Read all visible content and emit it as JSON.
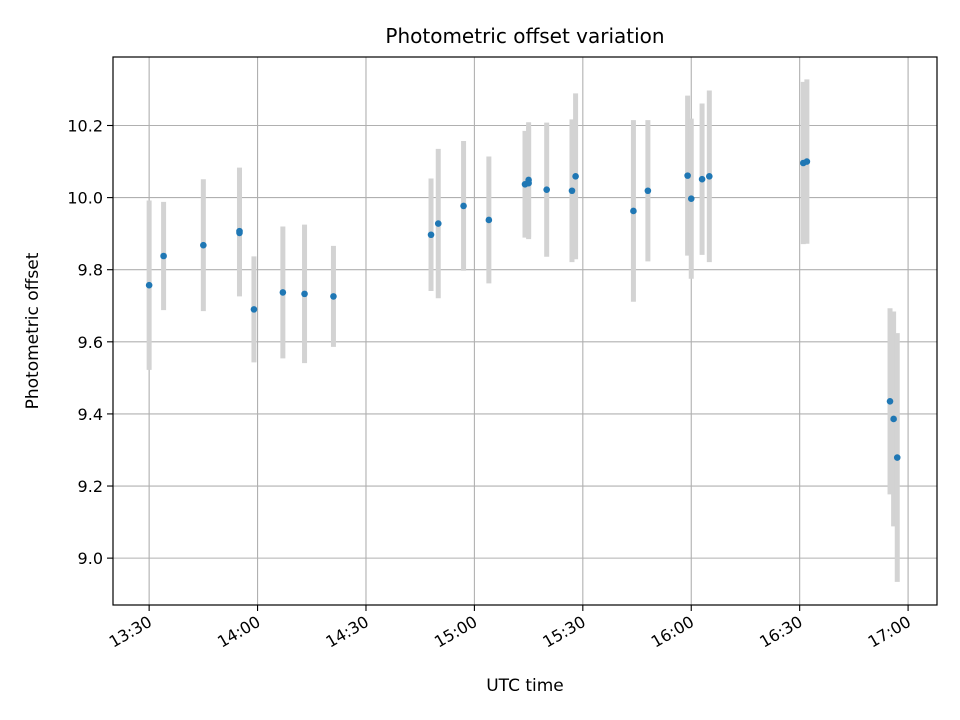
{
  "chart_data": {
    "type": "scatter",
    "title": "Photometric offset variation",
    "xlabel": "UTC time",
    "ylabel": "Photometric offset",
    "x_ticks": [
      "13:30",
      "14:00",
      "14:30",
      "15:00",
      "15:30",
      "16:00",
      "16:30",
      "17:00"
    ],
    "y_ticks": [
      "9.0",
      "9.2",
      "9.4",
      "9.6",
      "9.8",
      "10.0",
      "10.2"
    ],
    "xlim": [
      "13:20",
      "17:08"
    ],
    "ylim": [
      8.87,
      10.39
    ],
    "grid": true,
    "point_color": "#1f77b4",
    "errorbar_color": "#d3d3d3",
    "points": [
      {
        "time": "13:30",
        "y": 9.757,
        "err": 0.235
      },
      {
        "time": "13:34",
        "y": 9.838,
        "err": 0.15
      },
      {
        "time": "13:45",
        "y": 9.868,
        "err": 0.183
      },
      {
        "time": "13:55",
        "y": 9.907,
        "err": 0.176
      },
      {
        "time": "13:55",
        "y": 9.902,
        "err": 0.176
      },
      {
        "time": "13:59",
        "y": 9.69,
        "err": 0.147
      },
      {
        "time": "14:07",
        "y": 9.737,
        "err": 0.183
      },
      {
        "time": "14:13",
        "y": 9.733,
        "err": 0.192
      },
      {
        "time": "14:21",
        "y": 9.726,
        "err": 0.14
      },
      {
        "time": "14:48",
        "y": 9.897,
        "err": 0.156
      },
      {
        "time": "14:50",
        "y": 9.928,
        "err": 0.207
      },
      {
        "time": "14:57",
        "y": 9.977,
        "err": 0.18
      },
      {
        "time": "15:04",
        "y": 9.938,
        "err": 0.176
      },
      {
        "time": "15:14",
        "y": 10.037,
        "err": 0.148
      },
      {
        "time": "15:15",
        "y": 10.049,
        "err": 0.16
      },
      {
        "time": "15:15",
        "y": 10.04,
        "err": 0.155
      },
      {
        "time": "15:20",
        "y": 10.022,
        "err": 0.186
      },
      {
        "time": "15:27",
        "y": 10.019,
        "err": 0.198
      },
      {
        "time": "15:28",
        "y": 10.059,
        "err": 0.23
      },
      {
        "time": "15:44",
        "y": 9.963,
        "err": 0.252
      },
      {
        "time": "15:48",
        "y": 10.019,
        "err": 0.196
      },
      {
        "time": "15:59",
        "y": 10.061,
        "err": 0.222
      },
      {
        "time": "16:00",
        "y": 9.997,
        "err": 0.222
      },
      {
        "time": "16:03",
        "y": 10.051,
        "err": 0.21
      },
      {
        "time": "16:05",
        "y": 10.059,
        "err": 0.238
      },
      {
        "time": "16:31",
        "y": 10.096,
        "err": 0.225
      },
      {
        "time": "16:32",
        "y": 10.1,
        "err": 0.228
      },
      {
        "time": "16:55",
        "y": 9.435,
        "err": 0.258
      },
      {
        "time": "16:56",
        "y": 9.386,
        "err": 0.298
      },
      {
        "time": "16:57",
        "y": 9.279,
        "err": 0.345
      }
    ]
  }
}
